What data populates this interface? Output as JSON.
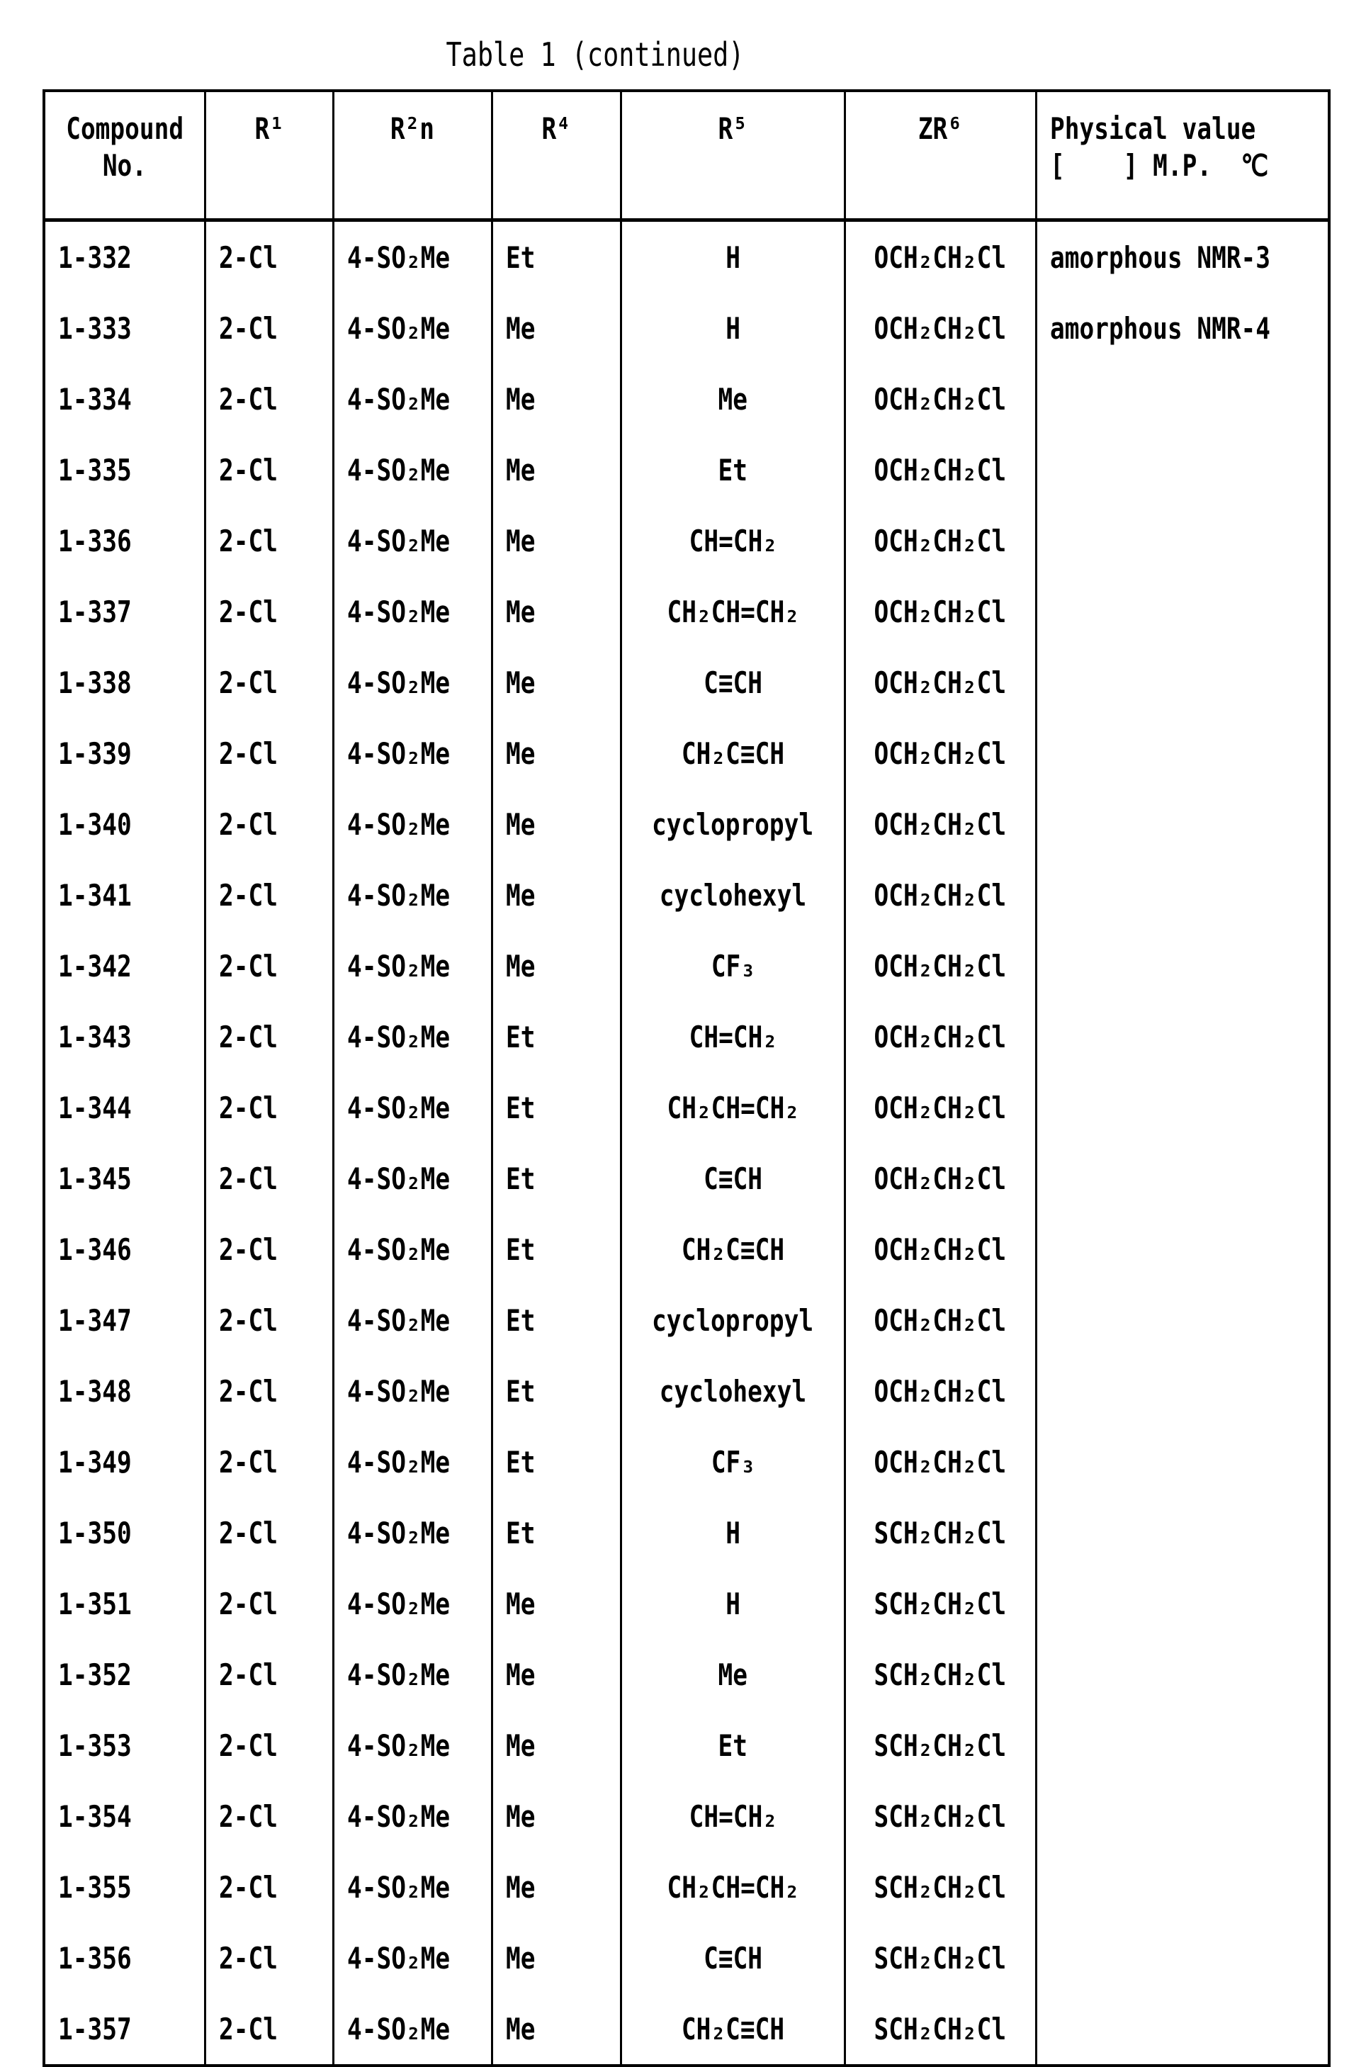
{
  "title": "Table   1 (continued)",
  "headers": {
    "compound_line1": "Compound",
    "compound_line2": "No.",
    "r1": "R¹",
    "r2n": "R²n",
    "r4": "R⁴",
    "r5": "R⁵",
    "zr6": "ZR⁶",
    "phys_line1": "Physical value",
    "phys_line2": "[    ] M.P.  ℃"
  },
  "rows": [
    [
      "1-332",
      "2-Cl",
      "4-SO₂Me",
      "Et",
      "H",
      "OCH₂CH₂Cl",
      "amorphous NMR-3"
    ],
    [
      "1-333",
      "2-Cl",
      "4-SO₂Me",
      "Me",
      "H",
      "OCH₂CH₂Cl",
      "amorphous NMR-4"
    ],
    [
      "1-334",
      "2-Cl",
      "4-SO₂Me",
      "Me",
      "Me",
      "OCH₂CH₂Cl",
      ""
    ],
    [
      "1-335",
      "2-Cl",
      "4-SO₂Me",
      "Me",
      "Et",
      "OCH₂CH₂Cl",
      ""
    ],
    [
      "1-336",
      "2-Cl",
      "4-SO₂Me",
      "Me",
      "CH=CH₂",
      "OCH₂CH₂Cl",
      ""
    ],
    [
      "1-337",
      "2-Cl",
      "4-SO₂Me",
      "Me",
      "CH₂CH=CH₂",
      "OCH₂CH₂Cl",
      ""
    ],
    [
      "1-338",
      "2-Cl",
      "4-SO₂Me",
      "Me",
      "C≡CH",
      "OCH₂CH₂Cl",
      ""
    ],
    [
      "1-339",
      "2-Cl",
      "4-SO₂Me",
      "Me",
      "CH₂C≡CH",
      "OCH₂CH₂Cl",
      ""
    ],
    [
      "1-340",
      "2-Cl",
      "4-SO₂Me",
      "Me",
      "cyclopropyl",
      "OCH₂CH₂Cl",
      ""
    ],
    [
      "1-341",
      "2-Cl",
      "4-SO₂Me",
      "Me",
      "cyclohexyl",
      "OCH₂CH₂Cl",
      ""
    ],
    [
      "1-342",
      "2-Cl",
      "4-SO₂Me",
      "Me",
      "CF₃",
      "OCH₂CH₂Cl",
      ""
    ],
    [
      "1-343",
      "2-Cl",
      "4-SO₂Me",
      "Et",
      "CH=CH₂",
      "OCH₂CH₂Cl",
      ""
    ],
    [
      "1-344",
      "2-Cl",
      "4-SO₂Me",
      "Et",
      "CH₂CH=CH₂",
      "OCH₂CH₂Cl",
      ""
    ],
    [
      "1-345",
      "2-Cl",
      "4-SO₂Me",
      "Et",
      "C≡CH",
      "OCH₂CH₂Cl",
      ""
    ],
    [
      "1-346",
      "2-Cl",
      "4-SO₂Me",
      "Et",
      "CH₂C≡CH",
      "OCH₂CH₂Cl",
      ""
    ],
    [
      "1-347",
      "2-Cl",
      "4-SO₂Me",
      "Et",
      "cyclopropyl",
      "OCH₂CH₂Cl",
      ""
    ],
    [
      "1-348",
      "2-Cl",
      "4-SO₂Me",
      "Et",
      "cyclohexyl",
      "OCH₂CH₂Cl",
      ""
    ],
    [
      "1-349",
      "2-Cl",
      "4-SO₂Me",
      "Et",
      "CF₃",
      "OCH₂CH₂Cl",
      ""
    ],
    [
      "1-350",
      "2-Cl",
      "4-SO₂Me",
      "Et",
      "H",
      "SCH₂CH₂Cl",
      ""
    ],
    [
      "1-351",
      "2-Cl",
      "4-SO₂Me",
      "Me",
      "H",
      "SCH₂CH₂Cl",
      ""
    ],
    [
      "1-352",
      "2-Cl",
      "4-SO₂Me",
      "Me",
      "Me",
      "SCH₂CH₂Cl",
      ""
    ],
    [
      "1-353",
      "2-Cl",
      "4-SO₂Me",
      "Me",
      "Et",
      "SCH₂CH₂Cl",
      ""
    ],
    [
      "1-354",
      "2-Cl",
      "4-SO₂Me",
      "Me",
      "CH=CH₂",
      "SCH₂CH₂Cl",
      ""
    ],
    [
      "1-355",
      "2-Cl",
      "4-SO₂Me",
      "Me",
      "CH₂CH=CH₂",
      "SCH₂CH₂Cl",
      ""
    ],
    [
      "1-356",
      "2-Cl",
      "4-SO₂Me",
      "Me",
      "C≡CH",
      "SCH₂CH₂Cl",
      ""
    ],
    [
      "1-357",
      "2-Cl",
      "4-SO₂Me",
      "Me",
      "CH₂C≡CH",
      "SCH₂CH₂Cl",
      ""
    ]
  ]
}
